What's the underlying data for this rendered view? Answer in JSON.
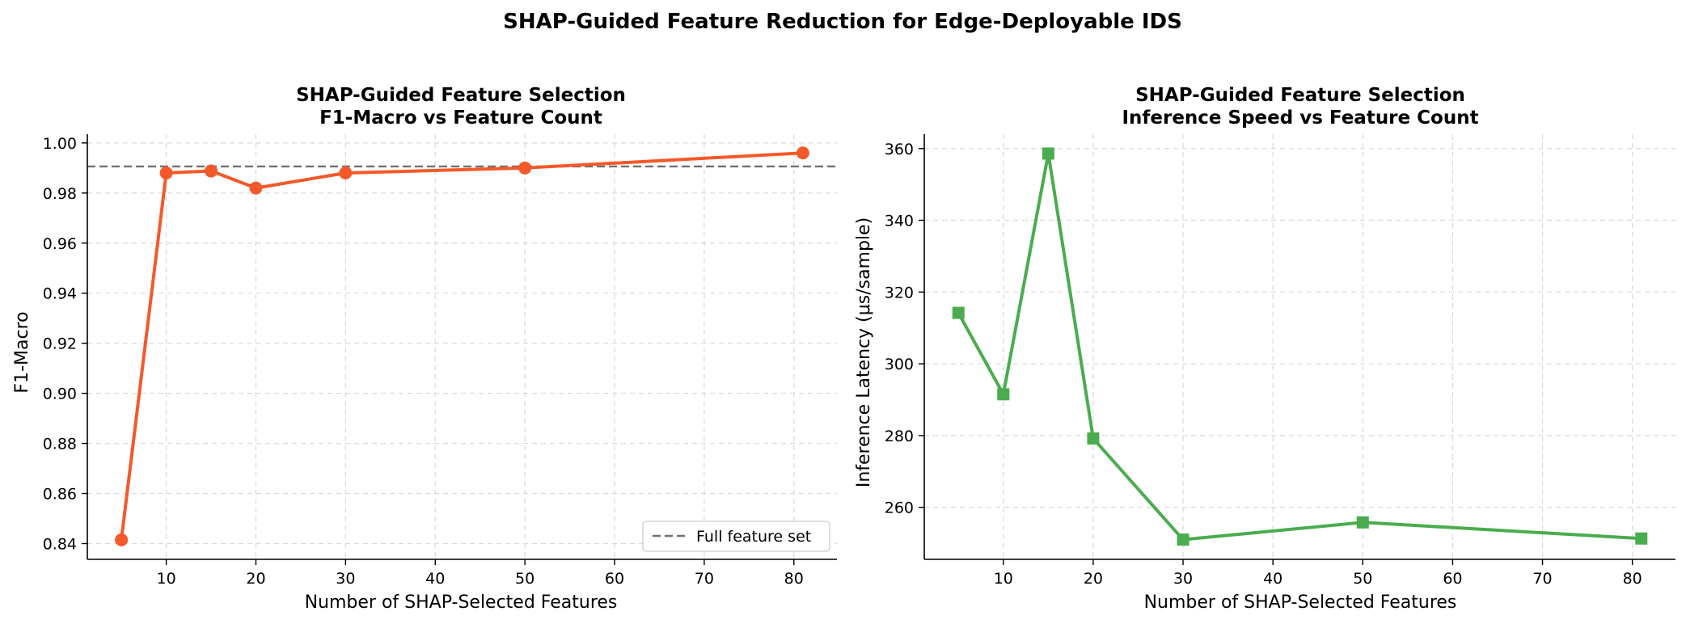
{
  "figure": {
    "suptitle": "SHAP-Guided Feature Reduction for Edge-Deployable IDS"
  },
  "chart_data": [
    {
      "type": "line",
      "title_line1": "SHAP-Guided Feature Selection",
      "title_line2": "F1-Macro vs Feature Count",
      "xlabel": "Number of SHAP-Selected Features",
      "ylabel": "F1-Macro",
      "xlim": [
        1.2,
        84.8
      ],
      "ylim": [
        0.8337,
        1.0035
      ],
      "xticks": [
        10,
        20,
        30,
        40,
        50,
        60,
        70,
        80
      ],
      "yticks": [
        0.84,
        0.86,
        0.88,
        0.9,
        0.92,
        0.94,
        0.96,
        0.98,
        1.0
      ],
      "ytick_labels": [
        "0.84",
        "0.86",
        "0.88",
        "0.90",
        "0.92",
        "0.94",
        "0.96",
        "0.98",
        "1.00"
      ],
      "grid": true,
      "legend_position": "lower-right",
      "series": [
        {
          "color": "#f4592a",
          "marker": "circle",
          "x": [
            5,
            10,
            15,
            20,
            30,
            50,
            81
          ],
          "y": [
            0.8415,
            0.988,
            0.9888,
            0.982,
            0.988,
            0.99,
            0.996
          ]
        }
      ],
      "reference_line": {
        "name": "Full feature set",
        "y": 0.9906,
        "color": "#707070",
        "style": "dashed"
      }
    },
    {
      "type": "line",
      "title_line1": "SHAP-Guided Feature Selection",
      "title_line2": "Inference Speed vs Feature Count",
      "xlabel": "Number of SHAP-Selected Features",
      "ylabel": "Inference Latency (μs/sample)",
      "xlim": [
        1.2,
        84.8
      ],
      "ylim": [
        245.5,
        364.0
      ],
      "xticks": [
        10,
        20,
        30,
        40,
        50,
        60,
        70,
        80
      ],
      "yticks": [
        260,
        280,
        300,
        320,
        340,
        360
      ],
      "ytick_labels": [
        "260",
        "280",
        "300",
        "320",
        "340",
        "360"
      ],
      "grid": true,
      "series": [
        {
          "color": "#4aac4e",
          "marker": "square",
          "x": [
            5,
            10,
            15,
            20,
            30,
            50,
            81
          ],
          "y": [
            314.2,
            291.5,
            358.6,
            279.2,
            251.0,
            255.8,
            251.3
          ]
        }
      ]
    }
  ]
}
